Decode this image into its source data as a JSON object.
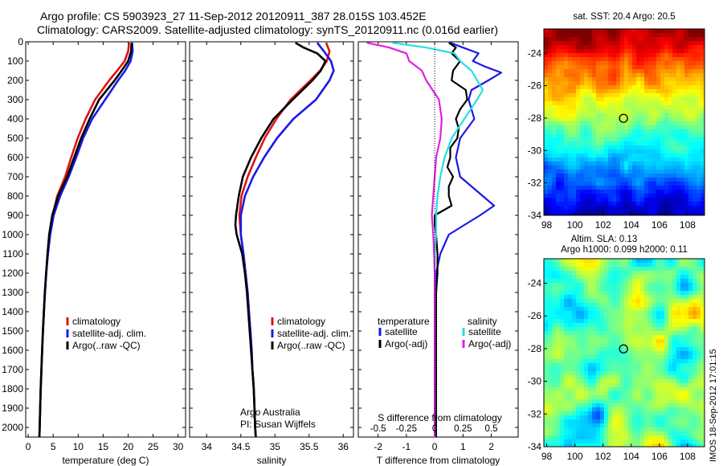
{
  "header": {
    "line1": "Argo profile: CS 5903923_27  11-Sep-2012 20120911_387 28.015S 103.452E",
    "line2": "Climatology: CARS2009. Satellite-adjusted climatology: synTS_20120911.nc (0.016d earlier)"
  },
  "timestamp": "IMOS 18-Sep-2012 17:01:15",
  "colors": {
    "climatology": "#e11212",
    "satellite": "#1a1ae6",
    "argo": "#000000",
    "sat_salinity": "#22e0e0",
    "argo_salinity": "#e020e0"
  },
  "chart_data": [
    {
      "type": "line",
      "id": "temperature",
      "xlabel": "temperature (deg C)",
      "ylabel": "",
      "xlim": [
        -0.5,
        31.5
      ],
      "ylim": [
        2050,
        0
      ],
      "x_ticks": [
        0,
        5,
        10,
        15,
        20,
        25,
        30
      ],
      "y_ticks": [
        0,
        100,
        200,
        300,
        400,
        500,
        600,
        700,
        800,
        900,
        1000,
        1100,
        1200,
        1300,
        1400,
        1500,
        1600,
        1700,
        1800,
        1900,
        2000
      ],
      "legend": {
        "entries": [
          "climatology",
          "satellite-adj. clim.",
          "Argo(..raw -QC)"
        ],
        "location": "lower-center"
      },
      "series": [
        {
          "name": "climatology",
          "color": "#e11212",
          "depth": [
            5,
            50,
            100,
            150,
            200,
            300,
            400,
            500,
            600,
            700,
            800,
            900,
            1000,
            1100,
            1200,
            1300,
            1400,
            1500,
            1600,
            1700,
            1800,
            1900,
            2000,
            2050
          ],
          "values": [
            20.2,
            20.0,
            19.3,
            17.8,
            16.2,
            13.4,
            11.5,
            9.9,
            8.6,
            7.4,
            5.8,
            4.9,
            4.3,
            3.9,
            3.6,
            3.35,
            3.15,
            2.95,
            2.8,
            2.65,
            2.5,
            2.4,
            2.3,
            2.25
          ]
        },
        {
          "name": "satellite-adj. clim.",
          "color": "#1a1ae6",
          "depth": [
            5,
            50,
            100,
            150,
            200,
            300,
            400,
            500,
            600,
            700,
            800,
            900,
            1000,
            1100,
            1200,
            1300,
            1400,
            1500,
            1600,
            1700,
            1800,
            1900,
            2000,
            2050
          ],
          "values": [
            20.8,
            20.9,
            20.5,
            19.4,
            18.0,
            15.4,
            12.8,
            11.0,
            9.6,
            8.1,
            6.4,
            5.1,
            4.4,
            3.95,
            3.62,
            3.36,
            3.15,
            2.95,
            2.8,
            2.65,
            2.5,
            2.4,
            2.3,
            2.25
          ]
        },
        {
          "name": "Argo(..raw -QC)",
          "color": "#000000",
          "depth": [
            5,
            50,
            100,
            150,
            200,
            300,
            400,
            500,
            600,
            700,
            800,
            900,
            1000,
            1100,
            1200,
            1300,
            1400,
            1500,
            1600,
            1700,
            1800,
            1900,
            2000,
            2050
          ],
          "values": [
            20.7,
            20.6,
            20.0,
            18.7,
            17.3,
            14.2,
            12.3,
            10.6,
            9.2,
            7.8,
            6.0,
            4.8,
            4.2,
            3.85,
            3.58,
            3.33,
            3.13,
            2.94,
            2.78,
            2.63,
            2.49,
            2.39,
            2.29,
            2.24
          ]
        }
      ]
    },
    {
      "type": "line",
      "id": "salinity",
      "xlabel": "salinity",
      "ylabel": "",
      "xlim": [
        33.75,
        36.15
      ],
      "ylim": [
        2050,
        0
      ],
      "x_ticks": [
        34,
        34.5,
        35,
        35.5,
        36
      ],
      "x_tick_labels": [
        "34",
        "34.5",
        "35",
        "35.5",
        "36"
      ],
      "legend": {
        "entries": [
          "climatology",
          "satellite-adj. clim.",
          "Argo(..raw -QC)"
        ],
        "location": "lower-center"
      },
      "annotation": [
        "Argo Australia",
        "PI: Susan Wijffels"
      ],
      "series": [
        {
          "name": "climatology",
          "color": "#e11212",
          "depth": [
            5,
            50,
            100,
            150,
            200,
            300,
            400,
            500,
            600,
            700,
            800,
            900,
            1000,
            1100,
            1200,
            1300,
            1400,
            1500,
            1600,
            1700,
            1800,
            1900,
            2000,
            2050
          ],
          "values": [
            35.75,
            35.8,
            35.76,
            35.66,
            35.52,
            35.23,
            35.02,
            34.85,
            34.72,
            34.6,
            34.51,
            34.48,
            34.5,
            34.54,
            34.57,
            34.6,
            34.62,
            34.64,
            34.66,
            34.67,
            34.69,
            34.7,
            34.71,
            34.72
          ]
        },
        {
          "name": "satellite-adj. clim.",
          "color": "#1a1ae6",
          "depth": [
            5,
            50,
            100,
            150,
            200,
            300,
            400,
            500,
            600,
            700,
            800,
            900,
            1000,
            1100,
            1200,
            1300,
            1400,
            1500,
            1600,
            1700,
            1800,
            1900,
            2000,
            2050
          ],
          "values": [
            35.62,
            35.72,
            35.82,
            35.86,
            35.8,
            35.6,
            35.27,
            35.03,
            34.84,
            34.68,
            34.56,
            34.5,
            34.5,
            34.54,
            34.57,
            34.6,
            34.62,
            34.64,
            34.66,
            34.67,
            34.69,
            34.7,
            34.71,
            34.72
          ]
        },
        {
          "name": "Argo(..raw -QC)",
          "color": "#000000",
          "depth": [
            5,
            30,
            60,
            100,
            150,
            200,
            300,
            400,
            500,
            600,
            700,
            800,
            900,
            950,
            1000,
            1100,
            1200,
            1300,
            1400,
            1500,
            1600,
            1700,
            1800,
            1900,
            2000,
            2050
          ],
          "values": [
            35.3,
            35.42,
            35.62,
            35.74,
            35.67,
            35.55,
            35.26,
            34.98,
            34.8,
            34.65,
            34.53,
            34.47,
            34.43,
            34.42,
            34.44,
            34.52,
            34.56,
            34.59,
            34.61,
            34.63,
            34.65,
            34.67,
            34.69,
            34.7,
            34.71,
            34.72
          ]
        }
      ]
    },
    {
      "type": "line",
      "id": "difference",
      "xlabel": "T difference from climatology",
      "top_xlabel": "S difference from climatology",
      "xlim": [
        -2.7,
        2.95
      ],
      "ylim": [
        2050,
        0
      ],
      "x_ticks": [
        -2,
        -1,
        0,
        1,
        2
      ],
      "top_x_ticks": [
        -0.5,
        -0.25,
        0,
        0.25,
        0.5
      ],
      "top_x_tick_labels": [
        "-0.5",
        "-0.25",
        "0",
        "0.25",
        "0.5"
      ],
      "legend": {
        "temperature_heading": "temperature",
        "salinity_heading": "salinity",
        "entries": [
          "satellite",
          "Argo(-adj)",
          "satellite",
          "Argo(-adj)"
        ],
        "location": "lower-center"
      },
      "series": [
        {
          "name": "temperature satellite",
          "color": "#1a1ae6",
          "depth": [
            5,
            30,
            60,
            100,
            130,
            160,
            200,
            250,
            300,
            400,
            500,
            600,
            700,
            800,
            850,
            900,
            1000,
            1100,
            1200,
            1400,
            1600,
            1800,
            2000,
            2050
          ],
          "values": [
            0.55,
            1.0,
            1.55,
            1.35,
            1.8,
            2.35,
            1.9,
            1.3,
            1.2,
            1.4,
            0.9,
            0.75,
            0.9,
            1.7,
            2.1,
            1.6,
            0.5,
            0.2,
            0.05,
            0.0,
            0.0,
            0.0,
            0.0,
            0.0
          ]
        },
        {
          "name": "temperature Argo(-adj)",
          "color": "#000000",
          "depth": [
            5,
            30,
            60,
            100,
            150,
            200,
            250,
            300,
            350,
            400,
            450,
            500,
            550,
            600,
            650,
            700,
            750,
            800,
            850,
            900,
            950,
            1000,
            1100,
            1200,
            1300,
            1400,
            1600,
            1800,
            2000,
            2050
          ],
          "values": [
            0.5,
            0.75,
            0.6,
            0.9,
            0.65,
            0.6,
            1.1,
            1.15,
            0.9,
            0.75,
            0.85,
            0.8,
            0.55,
            0.55,
            0.45,
            0.65,
            0.5,
            0.5,
            0.6,
            0.0,
            0.0,
            0.05,
            0.1,
            0.1,
            0.05,
            0.05,
            0.05,
            0.05,
            0.05,
            0.05
          ]
        },
        {
          "name": "salinity satellite",
          "color": "#22e0e0",
          "depth": [
            5,
            30,
            60,
            100,
            150,
            200,
            250,
            300,
            400,
            500,
            600,
            700,
            800,
            900,
            1000,
            1100,
            1200,
            1400,
            1600,
            1800,
            2000,
            2050
          ],
          "values": [
            -1.5,
            -0.3,
            0.7,
            0.9,
            1.3,
            1.5,
            1.7,
            1.5,
            1.05,
            0.6,
            0.35,
            0.2,
            0.1,
            0.05,
            0.05,
            0.0,
            0.0,
            0.0,
            0.0,
            0.0,
            0.0,
            0.0
          ]
        },
        {
          "name": "salinity Argo(-adj)",
          "color": "#e020e0",
          "depth": [
            5,
            30,
            60,
            100,
            150,
            200,
            300,
            400,
            500,
            600,
            700,
            800,
            900,
            1000,
            1100,
            1200,
            1400,
            1600,
            1800,
            2000,
            2050
          ],
          "values": [
            -2.4,
            -1.6,
            -1.0,
            -0.9,
            -0.45,
            -0.3,
            0.15,
            0.25,
            0.2,
            0.05,
            0.0,
            -0.05,
            -0.1,
            -0.05,
            -0.02,
            0.0,
            0.0,
            0.0,
            0.0,
            0.0,
            0.0
          ]
        }
      ]
    },
    {
      "type": "heatmap",
      "id": "sst-map",
      "title": "sat. SST: 20.4  Argo: 20.5",
      "xlim": [
        97.8,
        109.2
      ],
      "ylim": [
        -34,
        -22.5
      ],
      "x_ticks": [
        98,
        100,
        102,
        104,
        106,
        108
      ],
      "y_ticks": [
        -34,
        -32,
        -30,
        -28,
        -26,
        -24
      ],
      "marker": {
        "lon": 103.452,
        "lat": -28.015
      }
    },
    {
      "type": "heatmap",
      "id": "sla-map",
      "title_lines": [
        "Altim. SLA: 0.13",
        "Argo h1000: 0.099 h2000: 0.11"
      ],
      "xlim": [
        97.8,
        109.2
      ],
      "ylim": [
        -34,
        -22.5
      ],
      "x_ticks": [
        98,
        100,
        102,
        104,
        106,
        108
      ],
      "y_ticks": [
        -34,
        -32,
        -30,
        -28,
        -26,
        -24
      ],
      "marker": {
        "lon": 103.452,
        "lat": -28.015
      }
    }
  ]
}
